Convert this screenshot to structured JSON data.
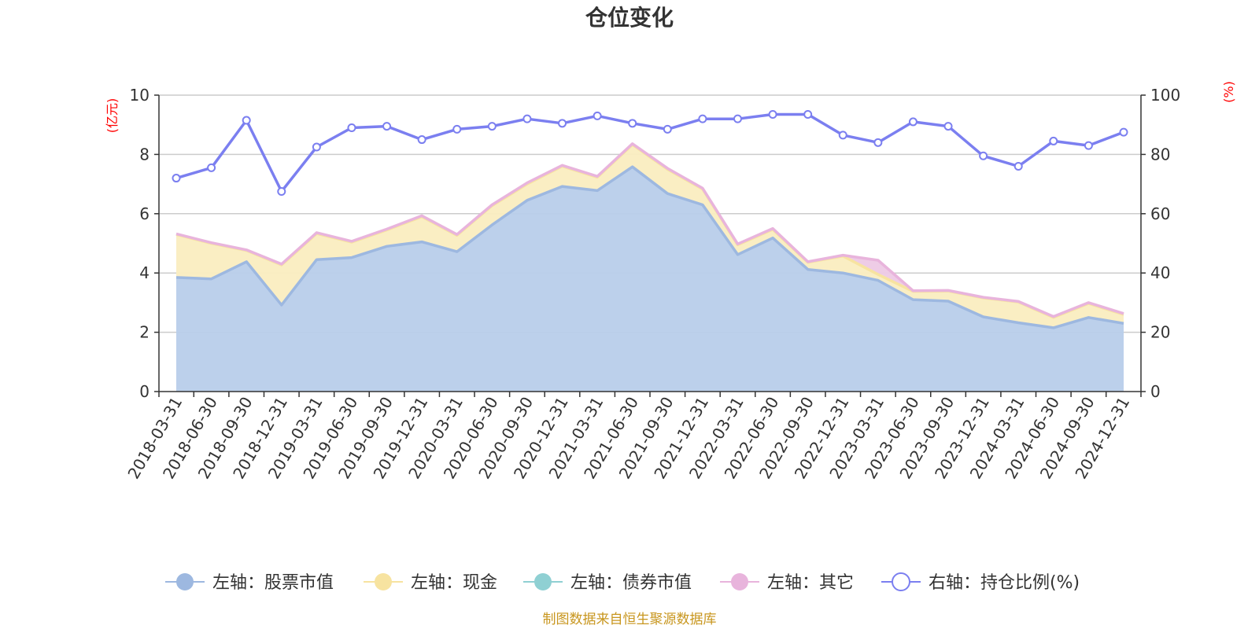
{
  "chart_data": {
    "type": "area",
    "title": "仓位变化",
    "left_axis": {
      "unit_label": "(亿元)",
      "range": [
        0,
        10
      ],
      "ticks": [
        0,
        2,
        4,
        6,
        8,
        10
      ]
    },
    "right_axis": {
      "unit_label": "(%)",
      "range": [
        0,
        100
      ],
      "ticks": [
        0,
        20,
        40,
        60,
        80,
        100
      ]
    },
    "grid": true,
    "categories": [
      "2018-03-31",
      "2018-06-30",
      "2018-09-30",
      "2018-12-31",
      "2019-03-31",
      "2019-06-30",
      "2019-09-30",
      "2019-12-31",
      "2020-03-31",
      "2020-06-30",
      "2020-09-30",
      "2020-12-31",
      "2021-03-31",
      "2021-06-30",
      "2021-09-30",
      "2021-12-31",
      "2022-03-31",
      "2022-06-30",
      "2022-09-30",
      "2022-12-31",
      "2023-03-31",
      "2023-06-30",
      "2023-09-30",
      "2023-12-31",
      "2024-03-31",
      "2024-06-30",
      "2024-09-30",
      "2024-12-31"
    ],
    "series": [
      {
        "name": "左轴：股票市值",
        "axis": "left",
        "stack": true,
        "color": "#9db8e0",
        "area_color": "#b8cdea",
        "values": [
          3.85,
          3.8,
          4.38,
          2.92,
          4.45,
          4.52,
          4.9,
          5.05,
          4.72,
          5.62,
          6.45,
          6.92,
          6.78,
          7.58,
          6.68,
          6.3,
          4.62,
          5.18,
          4.12,
          4.0,
          3.75,
          3.1,
          3.05,
          2.52,
          2.32,
          2.15,
          2.5,
          2.3
        ]
      },
      {
        "name": "左轴：现金",
        "axis": "left",
        "stack": true,
        "color": "#f7e3a0",
        "area_color": "#faedc0",
        "values": [
          1.45,
          1.2,
          0.38,
          1.35,
          0.88,
          0.52,
          0.55,
          0.85,
          0.55,
          0.65,
          0.55,
          0.68,
          0.45,
          0.75,
          0.82,
          0.53,
          0.33,
          0.29,
          0.24,
          0.57,
          0.2,
          0.28,
          0.34,
          0.64,
          0.7,
          0.35,
          0.47,
          0.3
        ]
      },
      {
        "name": "左轴：债券市值",
        "axis": "left",
        "stack": true,
        "color": "#8fd0d3",
        "area_color": "#a9dcde",
        "values": [
          0,
          0,
          0,
          0,
          0,
          0,
          0,
          0,
          0,
          0,
          0,
          0,
          0,
          0,
          0,
          0,
          0,
          0,
          0,
          0,
          0,
          0,
          0,
          0,
          0,
          0,
          0,
          0
        ]
      },
      {
        "name": "左轴：其它",
        "axis": "left",
        "stack": true,
        "color": "#e8b4dc",
        "area_color": "#edc9e5",
        "values": [
          0.02,
          0.02,
          0.02,
          0.03,
          0.03,
          0.03,
          0.03,
          0.03,
          0.03,
          0.03,
          0.04,
          0.03,
          0.03,
          0.03,
          0.03,
          0.03,
          0.03,
          0.03,
          0.02,
          0.03,
          0.48,
          0.02,
          0.02,
          0.02,
          0.02,
          0.03,
          0.03,
          0.03
        ]
      },
      {
        "name": "右轴：持仓比例(%)",
        "axis": "right",
        "type": "line",
        "color": "#7b7ff0",
        "values": [
          72,
          75.5,
          91.5,
          67.5,
          82.5,
          89,
          89.5,
          85,
          88.5,
          89.5,
          92,
          90.5,
          93,
          90.5,
          88.5,
          92,
          92,
          93.5,
          93.5,
          86.5,
          84,
          91,
          89.5,
          79.5,
          76,
          84.5,
          83,
          87.5
        ]
      }
    ],
    "source": "制图数据来自恒生聚源数据库"
  }
}
